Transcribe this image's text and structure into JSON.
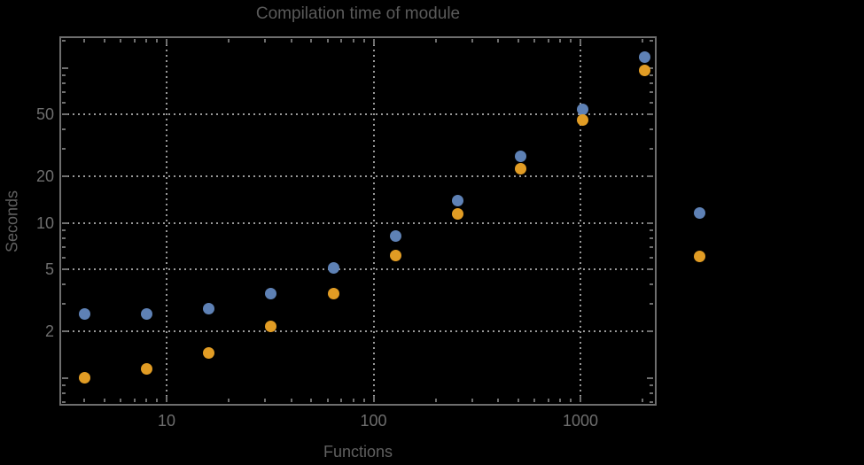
{
  "chart_data": {
    "type": "scatter",
    "title": "Compilation time of module",
    "xlabel": "Functions",
    "ylabel": "Seconds",
    "xscale": "log",
    "yscale": "log",
    "xlim": [
      3.06,
      2290
    ],
    "ylim": [
      0.68,
      158
    ],
    "grid": "dotted",
    "x": [
      4,
      8,
      16,
      32,
      64,
      128,
      256,
      512,
      1024,
      2048
    ],
    "series": [
      {
        "name": "series-1",
        "color": "#5e81b5",
        "values": [
          2.6,
          2.6,
          2.8,
          3.5,
          5.1,
          8.2,
          14,
          27,
          54,
          118
        ]
      },
      {
        "name": "series-2",
        "color": "#e19c24",
        "values": [
          1.0,
          1.15,
          1.45,
          2.15,
          3.5,
          6.2,
          11.5,
          22.5,
          46,
          96
        ]
      }
    ],
    "x_ticks": {
      "major": [
        {
          "v": 10,
          "label": "10"
        },
        {
          "v": 100,
          "label": "100"
        },
        {
          "v": 1000,
          "label": "1000"
        }
      ],
      "minor": [
        4,
        5,
        6,
        7,
        8,
        9,
        20,
        30,
        40,
        50,
        60,
        70,
        80,
        90,
        200,
        300,
        400,
        500,
        600,
        700,
        800,
        900,
        2000
      ]
    },
    "y_ticks": {
      "major": [
        {
          "v": 1,
          "label": ""
        },
        {
          "v": 2,
          "label": "2"
        },
        {
          "v": 5,
          "label": "5"
        },
        {
          "v": 10,
          "label": "10"
        },
        {
          "v": 20,
          "label": "20"
        },
        {
          "v": 50,
          "label": "50"
        },
        {
          "v": 100,
          "label": ""
        }
      ],
      "minor": [
        0.7,
        0.8,
        0.9,
        3,
        4,
        6,
        7,
        8,
        9,
        30,
        40,
        60,
        70,
        80,
        90,
        150
      ]
    },
    "gridlines": {
      "x": [
        10,
        100,
        1000
      ],
      "y": [
        2,
        5,
        10,
        20,
        50
      ]
    },
    "legend_position": "right",
    "legend": {
      "labels_visible": false,
      "markers": [
        {
          "series": "series-1",
          "color": "#5e81b5"
        },
        {
          "series": "series-2",
          "color": "#e19c24"
        }
      ]
    }
  },
  "colors": {
    "background": "#000000",
    "frame": "#6e6e6e",
    "grid": "#989898",
    "title": "#5a5a5a",
    "tick_label": "#6e6e6e",
    "axis_label": "#606060",
    "series1_blue": "#5e81b5",
    "series2_orange": "#e19c24"
  }
}
